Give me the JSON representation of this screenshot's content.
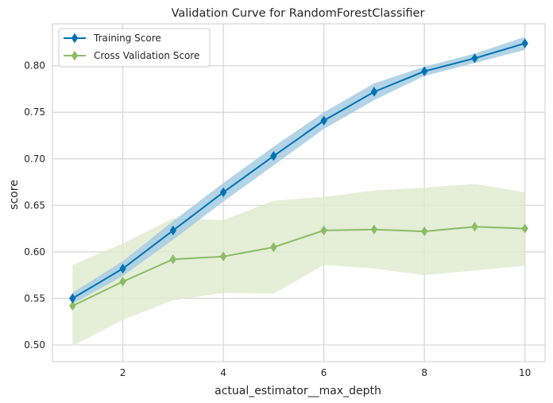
{
  "chart_data": {
    "type": "line",
    "title": "Validation Curve for RandomForestClassifier",
    "xlabel": "actual_estimator__max_depth",
    "ylabel": "score",
    "xlim": [
      0.6,
      10.4
    ],
    "ylim": [
      0.482,
      0.845
    ],
    "x_ticks": [
      2,
      4,
      6,
      8,
      10
    ],
    "y_ticks": [
      0.5,
      0.55,
      0.6,
      0.65,
      0.7,
      0.75,
      0.8
    ],
    "x_tick_labels": [
      "2",
      "4",
      "6",
      "8",
      "10"
    ],
    "y_tick_labels": [
      "0.50",
      "0.55",
      "0.60",
      "0.65",
      "0.70",
      "0.75",
      "0.80"
    ],
    "grid": true,
    "legend_position": "top-left",
    "x": [
      1,
      2,
      3,
      4,
      5,
      6,
      7,
      8,
      9,
      10
    ],
    "series": [
      {
        "name": "Training Score",
        "color": "#0072b2",
        "band_color": "#a6cbe3",
        "values": [
          0.55,
          0.582,
          0.623,
          0.664,
          0.703,
          0.741,
          0.772,
          0.794,
          0.808,
          0.824
        ],
        "lower": [
          0.544,
          0.574,
          0.613,
          0.654,
          0.693,
          0.732,
          0.763,
          0.789,
          0.803,
          0.817
        ],
        "upper": [
          0.556,
          0.59,
          0.633,
          0.674,
          0.713,
          0.75,
          0.781,
          0.799,
          0.813,
          0.831
        ]
      },
      {
        "name": "Cross Validation Score",
        "color": "#8cbb68",
        "band_color": "#dfeacd",
        "values": [
          0.542,
          0.568,
          0.592,
          0.595,
          0.605,
          0.623,
          0.624,
          0.622,
          0.627,
          0.625
        ],
        "lower": [
          0.499,
          0.527,
          0.548,
          0.556,
          0.555,
          0.586,
          0.582,
          0.575,
          0.58,
          0.585
        ],
        "upper": [
          0.586,
          0.609,
          0.636,
          0.634,
          0.655,
          0.659,
          0.666,
          0.669,
          0.673,
          0.664
        ]
      }
    ]
  }
}
